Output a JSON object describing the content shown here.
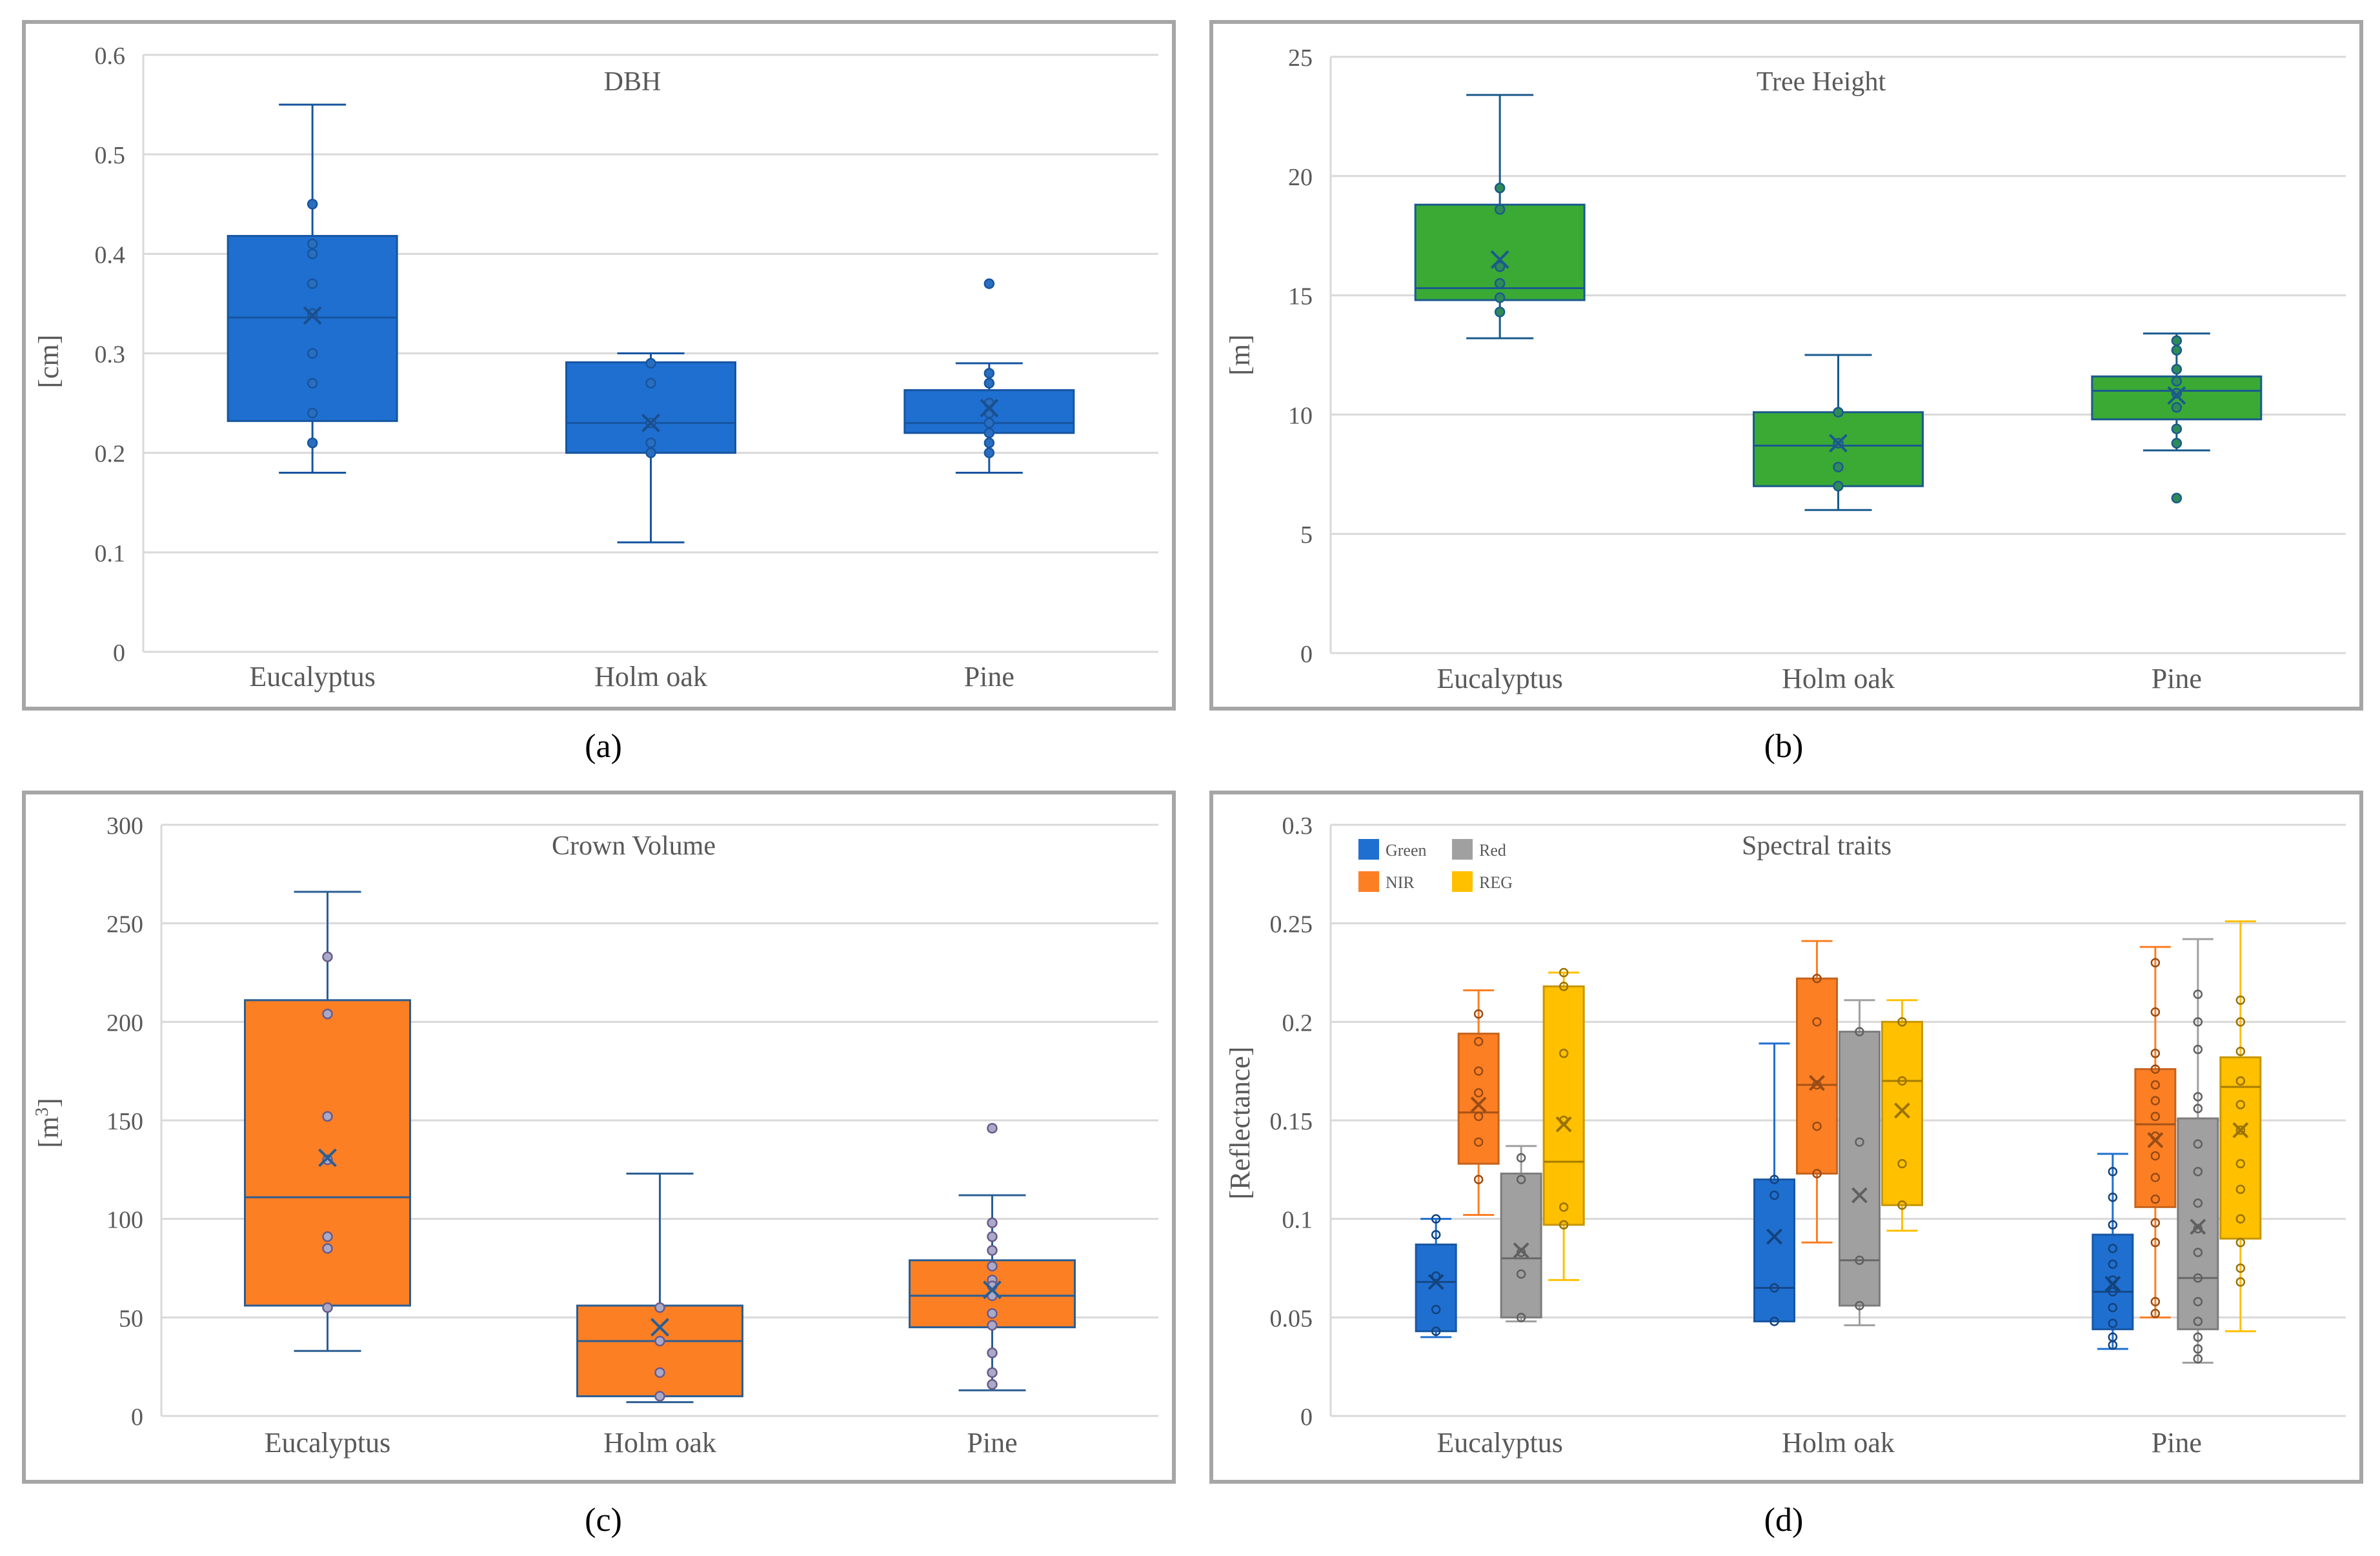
{
  "figure_labels": [
    "(a)",
    "(b)",
    "(c)",
    "(d)"
  ],
  "colors": {
    "blue": "#1f6fd0",
    "blue_edge": "#1655a0",
    "green": "#3aaa35",
    "green_edge": "#1a5a8c",
    "orange": "#fd7f24",
    "orange_edge": "#2a5e93",
    "gray": "#a0a0a0",
    "yellow": "#ffc000",
    "grid": "#d9d9d9",
    "frame": "#a6a6a6",
    "text": "#595959"
  },
  "chart_data": [
    {
      "type": "boxplot",
      "title": "DBH",
      "ylabel": "[cm]",
      "ylim": [
        0,
        0.6
      ],
      "yticks": [
        "0",
        "0.1",
        "0.2",
        "0.3",
        "0.4",
        "0.5",
        "0.6"
      ],
      "categories": [
        "Eucalyptus",
        "Holm oak",
        "Pine"
      ],
      "series": [
        {
          "name": "DBH",
          "color": "#1f6fd0",
          "boxes": [
            {
              "min": 0.18,
              "q1": 0.232,
              "median": 0.336,
              "q3": 0.418,
              "max": 0.55,
              "mean": 0.338,
              "points": [
                0.45,
                0.41,
                0.4,
                0.37,
                0.34,
                0.3,
                0.27,
                0.24,
                0.21
              ]
            },
            {
              "min": 0.11,
              "q1": 0.2,
              "median": 0.23,
              "q3": 0.291,
              "max": 0.3,
              "mean": 0.23,
              "points": [
                0.29,
                0.27,
                0.23,
                0.21,
                0.2
              ]
            },
            {
              "min": 0.18,
              "q1": 0.22,
              "median": 0.23,
              "q3": 0.263,
              "max": 0.29,
              "mean": 0.245,
              "points": [
                0.37,
                0.28,
                0.27,
                0.25,
                0.24,
                0.23,
                0.22,
                0.21,
                0.2
              ]
            }
          ]
        }
      ]
    },
    {
      "type": "boxplot",
      "title": "Tree Height",
      "ylabel": "[m]",
      "ylim": [
        0,
        25
      ],
      "yticks": [
        "0",
        "5",
        "10",
        "15",
        "20",
        "25"
      ],
      "categories": [
        "Eucalyptus",
        "Holm oak",
        "Pine"
      ],
      "series": [
        {
          "name": "Tree Height",
          "color": "#3aaa35",
          "boxes": [
            {
              "min": 13.2,
              "q1": 14.8,
              "median": 15.3,
              "q3": 18.8,
              "max": 23.4,
              "mean": 16.5,
              "points": [
                19.5,
                18.6,
                16.2,
                15.5,
                14.9,
                14.3
              ]
            },
            {
              "min": 6.0,
              "q1": 7.0,
              "median": 8.7,
              "q3": 10.1,
              "max": 12.5,
              "mean": 8.8,
              "points": [
                10.1,
                8.8,
                7.8,
                7.0
              ]
            },
            {
              "min": 8.5,
              "q1": 9.8,
              "median": 11.0,
              "q3": 11.6,
              "max": 13.4,
              "mean": 10.8,
              "points": [
                13.1,
                12.7,
                11.9,
                11.4,
                10.9,
                10.3,
                9.4,
                8.8,
                6.5
              ]
            }
          ]
        }
      ]
    },
    {
      "type": "boxplot",
      "title": "Crown Volume",
      "ylabel": "[m³]",
      "ylim": [
        0,
        300
      ],
      "yticks": [
        "0",
        "50",
        "100",
        "150",
        "200",
        "250",
        "300"
      ],
      "categories": [
        "Eucalyptus",
        "Holm oak",
        "Pine"
      ],
      "series": [
        {
          "name": "Crown Volume",
          "color": "#fd7f24",
          "boxes": [
            {
              "min": 33,
              "q1": 56,
              "median": 111,
              "q3": 211,
              "max": 266,
              "mean": 131,
              "points": [
                233,
                204,
                152,
                130,
                91,
                85,
                55
              ]
            },
            {
              "min": 7,
              "q1": 10,
              "median": 38,
              "q3": 56,
              "max": 123,
              "mean": 45,
              "points": [
                55,
                38,
                22,
                10
              ]
            },
            {
              "min": 13,
              "q1": 45,
              "median": 61,
              "q3": 79,
              "max": 112,
              "mean": 64,
              "points": [
                146,
                98,
                91,
                84,
                76,
                69,
                66,
                61,
                52,
                46,
                32,
                22,
                16
              ]
            }
          ]
        }
      ]
    },
    {
      "type": "boxplot",
      "title": "Spectral traits",
      "ylabel": "[Reflectance]",
      "ylim": [
        0,
        0.3
      ],
      "yticks": [
        "0",
        "0.05",
        "0.1",
        "0.15",
        "0.2",
        "0.25",
        "0.3"
      ],
      "categories": [
        "Eucalyptus",
        "Holm oak",
        "Pine"
      ],
      "legend_position": "top-left",
      "series": [
        {
          "name": "Green",
          "color": "#1f6fd0",
          "boxes": [
            {
              "min": 0.04,
              "q1": 0.043,
              "median": 0.068,
              "q3": 0.087,
              "max": 0.1,
              "mean": 0.068,
              "points": [
                0.1,
                0.092,
                0.071,
                0.054,
                0.043
              ]
            },
            {
              "min": 0.048,
              "q1": 0.048,
              "median": 0.065,
              "q3": 0.12,
              "max": 0.189,
              "mean": 0.091,
              "points": [
                0.12,
                0.112,
                0.065,
                0.048
              ]
            },
            {
              "min": 0.034,
              "q1": 0.044,
              "median": 0.063,
              "q3": 0.092,
              "max": 0.133,
              "mean": 0.067,
              "points": [
                0.124,
                0.111,
                0.097,
                0.085,
                0.077,
                0.069,
                0.063,
                0.055,
                0.047,
                0.04,
                0.036
              ]
            }
          ]
        },
        {
          "name": "NIR",
          "color": "#fd7f24",
          "boxes": [
            {
              "min": 0.102,
              "q1": 0.128,
              "median": 0.154,
              "q3": 0.194,
              "max": 0.216,
              "mean": 0.158,
              "points": [
                0.204,
                0.19,
                0.175,
                0.164,
                0.152,
                0.139,
                0.12
              ]
            },
            {
              "min": 0.088,
              "q1": 0.123,
              "median": 0.168,
              "q3": 0.222,
              "max": 0.241,
              "mean": 0.169,
              "points": [
                0.222,
                0.2,
                0.168,
                0.147,
                0.123
              ]
            },
            {
              "min": 0.05,
              "q1": 0.106,
              "median": 0.148,
              "q3": 0.176,
              "max": 0.238,
              "mean": 0.14,
              "points": [
                0.23,
                0.205,
                0.184,
                0.176,
                0.168,
                0.16,
                0.152,
                0.142,
                0.132,
                0.121,
                0.11,
                0.098,
                0.088,
                0.058,
                0.052
              ]
            }
          ]
        },
        {
          "name": "Red",
          "color": "#a0a0a0",
          "boxes": [
            {
              "min": 0.048,
              "q1": 0.05,
              "median": 0.08,
              "q3": 0.123,
              "max": 0.137,
              "mean": 0.084,
              "points": [
                0.131,
                0.12,
                0.083,
                0.072,
                0.05
              ]
            },
            {
              "min": 0.046,
              "q1": 0.056,
              "median": 0.079,
              "q3": 0.195,
              "max": 0.211,
              "mean": 0.112,
              "points": [
                0.195,
                0.139,
                0.079,
                0.056
              ]
            },
            {
              "min": 0.027,
              "q1": 0.044,
              "median": 0.07,
              "q3": 0.151,
              "max": 0.242,
              "mean": 0.096,
              "points": [
                0.214,
                0.2,
                0.186,
                0.162,
                0.156,
                0.138,
                0.124,
                0.108,
                0.095,
                0.083,
                0.07,
                0.058,
                0.048,
                0.04,
                0.034,
                0.029
              ]
            }
          ]
        },
        {
          "name": "REG",
          "color": "#ffc000",
          "boxes": [
            {
              "min": 0.069,
              "q1": 0.097,
              "median": 0.129,
              "q3": 0.218,
              "max": 0.225,
              "mean": 0.148,
              "points": [
                0.225,
                0.218,
                0.184,
                0.15,
                0.106,
                0.097
              ]
            },
            {
              "min": 0.094,
              "q1": 0.107,
              "median": 0.17,
              "q3": 0.2,
              "max": 0.211,
              "mean": 0.155,
              "points": [
                0.2,
                0.17,
                0.128,
                0.107
              ]
            },
            {
              "min": 0.043,
              "q1": 0.09,
              "median": 0.167,
              "q3": 0.182,
              "max": 0.251,
              "mean": 0.145,
              "points": [
                0.211,
                0.2,
                0.185,
                0.17,
                0.158,
                0.145,
                0.128,
                0.115,
                0.1,
                0.088,
                0.075,
                0.068
              ]
            }
          ]
        }
      ]
    }
  ]
}
